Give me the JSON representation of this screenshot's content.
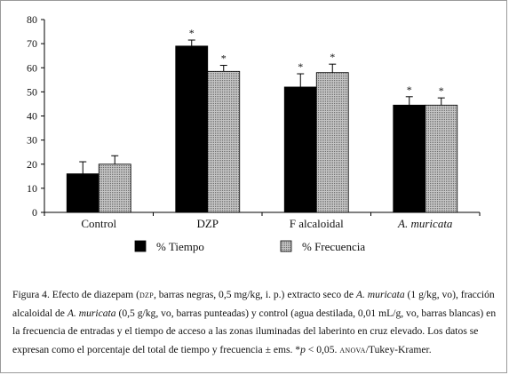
{
  "chart_data": {
    "type": "bar",
    "title": "",
    "xlabel": "",
    "ylabel": "",
    "ylim": [
      0,
      80
    ],
    "yticks": [
      0,
      10,
      20,
      30,
      40,
      50,
      60,
      70,
      80
    ],
    "grid": false,
    "legend_position": "bottom-center",
    "categories": [
      "Control",
      "DZP",
      "F alcaloidal",
      "A. muricata"
    ],
    "category_italic": [
      false,
      false,
      false,
      true
    ],
    "series": [
      {
        "name": "% Tiempo",
        "values": [
          16,
          69,
          52,
          44.5
        ],
        "errors": [
          5,
          2.5,
          5.5,
          3.5
        ],
        "significant": [
          false,
          true,
          true,
          true
        ],
        "color": "#000000"
      },
      {
        "name": "% Frecuencia",
        "values": [
          20,
          58.5,
          58,
          44.5
        ],
        "errors": [
          3.5,
          2.5,
          3.5,
          3
        ],
        "significant": [
          false,
          true,
          true,
          true
        ],
        "color": "#a8a8a8"
      }
    ],
    "significance_mark": "*"
  },
  "caption": {
    "segments": [
      {
        "t": "Figura 4. Efecto de diazepam (",
        "s": "n"
      },
      {
        "t": "dzp",
        "s": "sc"
      },
      {
        "t": ", barras negras, 0,5 mg/kg, i. p.) extracto seco de ",
        "s": "n"
      },
      {
        "t": "A. muricata",
        "s": "it"
      },
      {
        "t": " (1 g/kg, vo), fracción alcaloidal de ",
        "s": "n"
      },
      {
        "t": "A. muricata",
        "s": "it"
      },
      {
        "t": " (0,5 g/kg, vo, barras punteadas) y control (agua destilada, 0,01 mL/g, vo, barras blancas) en la frecuencia de entradas y el tiempo de acceso a las zonas iluminadas del laberinto en cruz elevado. Los datos se expresan como el porcentaje del total de tiempo y frecuencia ",
        "s": "n"
      },
      {
        "t": "±",
        "s": "pm"
      },
      {
        "t": " ems. *",
        "s": "n"
      },
      {
        "t": "p",
        "s": "it"
      },
      {
        "t": " < 0,05. ",
        "s": "n"
      },
      {
        "t": "anova",
        "s": "sc"
      },
      {
        "t": "/Tukey-Kramer.",
        "s": "n"
      }
    ]
  }
}
